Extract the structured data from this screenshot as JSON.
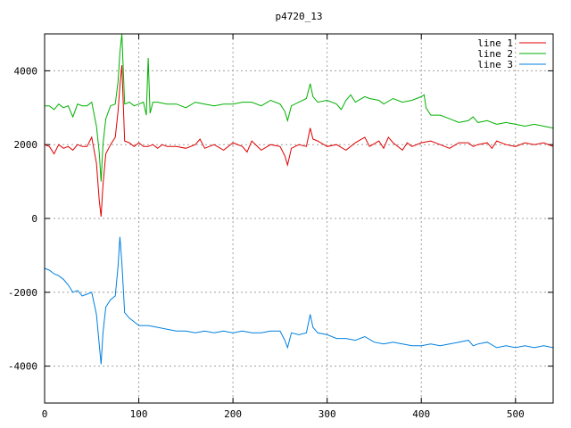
{
  "chart_data": {
    "type": "line",
    "title": "p4720_13",
    "xlabel": "",
    "ylabel": "",
    "xlim": [
      0,
      540
    ],
    "ylim": [
      -5000,
      5000
    ],
    "grid": true,
    "legend_position": "top-right",
    "x_ticks": [
      0,
      100,
      200,
      300,
      400,
      500
    ],
    "x_tick_labels": [
      "0",
      "100",
      "200",
      "300",
      "400",
      "500"
    ],
    "y_ticks": [
      -4000,
      -2000,
      0,
      2000,
      4000
    ],
    "y_tick_labels": [
      "-4000",
      "-2000",
      "0",
      "2000",
      "4000"
    ],
    "series": [
      {
        "name": "line 1",
        "color": "#e00000",
        "points": [
          [
            0,
            2000
          ],
          [
            5,
            1950
          ],
          [
            10,
            1750
          ],
          [
            15,
            2000
          ],
          [
            20,
            1900
          ],
          [
            25,
            1950
          ],
          [
            30,
            1850
          ],
          [
            35,
            2000
          ],
          [
            40,
            1950
          ],
          [
            45,
            1950
          ],
          [
            50,
            2200
          ],
          [
            55,
            1500
          ],
          [
            58,
            500
          ],
          [
            60,
            50
          ],
          [
            62,
            900
          ],
          [
            65,
            1750
          ],
          [
            70,
            2000
          ],
          [
            75,
            2200
          ],
          [
            78,
            2900
          ],
          [
            80,
            3600
          ],
          [
            82,
            4150
          ],
          [
            85,
            2100
          ],
          [
            90,
            2050
          ],
          [
            95,
            1950
          ],
          [
            100,
            2050
          ],
          [
            105,
            1950
          ],
          [
            110,
            1950
          ],
          [
            115,
            2000
          ],
          [
            120,
            1900
          ],
          [
            125,
            2000
          ],
          [
            130,
            1950
          ],
          [
            140,
            1950
          ],
          [
            150,
            1900
          ],
          [
            160,
            2000
          ],
          [
            165,
            2150
          ],
          [
            170,
            1900
          ],
          [
            180,
            2000
          ],
          [
            190,
            1850
          ],
          [
            200,
            2050
          ],
          [
            210,
            1950
          ],
          [
            215,
            1800
          ],
          [
            220,
            2100
          ],
          [
            230,
            1850
          ],
          [
            240,
            2000
          ],
          [
            250,
            1950
          ],
          [
            255,
            1700
          ],
          [
            258,
            1450
          ],
          [
            262,
            1900
          ],
          [
            270,
            2000
          ],
          [
            278,
            1950
          ],
          [
            282,
            2450
          ],
          [
            285,
            2150
          ],
          [
            290,
            2100
          ],
          [
            300,
            1950
          ],
          [
            310,
            2000
          ],
          [
            320,
            1850
          ],
          [
            330,
            2050
          ],
          [
            340,
            2200
          ],
          [
            345,
            1950
          ],
          [
            355,
            2100
          ],
          [
            360,
            1900
          ],
          [
            365,
            2200
          ],
          [
            370,
            2050
          ],
          [
            380,
            1850
          ],
          [
            385,
            2050
          ],
          [
            390,
            1950
          ],
          [
            400,
            2050
          ],
          [
            410,
            2100
          ],
          [
            420,
            2000
          ],
          [
            430,
            1900
          ],
          [
            440,
            2050
          ],
          [
            450,
            2050
          ],
          [
            455,
            1950
          ],
          [
            460,
            2000
          ],
          [
            470,
            2050
          ],
          [
            475,
            1900
          ],
          [
            480,
            2100
          ],
          [
            490,
            2000
          ],
          [
            500,
            1950
          ],
          [
            510,
            2050
          ],
          [
            520,
            2000
          ],
          [
            530,
            2050
          ],
          [
            540,
            1950
          ]
        ]
      },
      {
        "name": "line 2",
        "color": "#00b000",
        "points": [
          [
            0,
            3050
          ],
          [
            5,
            3050
          ],
          [
            10,
            2950
          ],
          [
            15,
            3100
          ],
          [
            20,
            3000
          ],
          [
            25,
            3050
          ],
          [
            30,
            2750
          ],
          [
            35,
            3100
          ],
          [
            40,
            3050
          ],
          [
            45,
            3050
          ],
          [
            50,
            3150
          ],
          [
            55,
            2500
          ],
          [
            58,
            1800
          ],
          [
            60,
            1000
          ],
          [
            62,
            2000
          ],
          [
            65,
            2700
          ],
          [
            70,
            3050
          ],
          [
            75,
            3100
          ],
          [
            78,
            3700
          ],
          [
            80,
            4500
          ],
          [
            82,
            5000
          ],
          [
            85,
            3100
          ],
          [
            90,
            3150
          ],
          [
            95,
            3050
          ],
          [
            100,
            3100
          ],
          [
            105,
            3150
          ],
          [
            108,
            2800
          ],
          [
            110,
            4350
          ],
          [
            112,
            2850
          ],
          [
            115,
            3150
          ],
          [
            120,
            3150
          ],
          [
            130,
            3100
          ],
          [
            140,
            3100
          ],
          [
            150,
            3000
          ],
          [
            160,
            3150
          ],
          [
            170,
            3100
          ],
          [
            180,
            3050
          ],
          [
            190,
            3100
          ],
          [
            200,
            3100
          ],
          [
            210,
            3150
          ],
          [
            220,
            3150
          ],
          [
            230,
            3050
          ],
          [
            240,
            3200
          ],
          [
            250,
            3100
          ],
          [
            255,
            2900
          ],
          [
            258,
            2650
          ],
          [
            262,
            3050
          ],
          [
            270,
            3150
          ],
          [
            278,
            3250
          ],
          [
            282,
            3650
          ],
          [
            285,
            3300
          ],
          [
            290,
            3150
          ],
          [
            300,
            3200
          ],
          [
            310,
            3100
          ],
          [
            315,
            2950
          ],
          [
            320,
            3200
          ],
          [
            325,
            3350
          ],
          [
            330,
            3150
          ],
          [
            340,
            3300
          ],
          [
            345,
            3250
          ],
          [
            355,
            3200
          ],
          [
            360,
            3100
          ],
          [
            370,
            3250
          ],
          [
            380,
            3150
          ],
          [
            390,
            3200
          ],
          [
            400,
            3300
          ],
          [
            403,
            3350
          ],
          [
            405,
            3000
          ],
          [
            410,
            2800
          ],
          [
            420,
            2800
          ],
          [
            430,
            2700
          ],
          [
            440,
            2600
          ],
          [
            450,
            2650
          ],
          [
            455,
            2750
          ],
          [
            460,
            2600
          ],
          [
            470,
            2650
          ],
          [
            480,
            2550
          ],
          [
            490,
            2600
          ],
          [
            500,
            2550
          ],
          [
            510,
            2500
          ],
          [
            520,
            2550
          ],
          [
            530,
            2500
          ],
          [
            540,
            2450
          ]
        ]
      },
      {
        "name": "line 3",
        "color": "#0080e0",
        "points": [
          [
            0,
            -1350
          ],
          [
            5,
            -1400
          ],
          [
            10,
            -1500
          ],
          [
            15,
            -1550
          ],
          [
            20,
            -1650
          ],
          [
            25,
            -1800
          ],
          [
            30,
            -2000
          ],
          [
            35,
            -1950
          ],
          [
            40,
            -2100
          ],
          [
            45,
            -2050
          ],
          [
            50,
            -2000
          ],
          [
            55,
            -2600
          ],
          [
            58,
            -3400
          ],
          [
            60,
            -3950
          ],
          [
            62,
            -3100
          ],
          [
            65,
            -2400
          ],
          [
            70,
            -2200
          ],
          [
            75,
            -2100
          ],
          [
            78,
            -1300
          ],
          [
            80,
            -500
          ],
          [
            82,
            -1200
          ],
          [
            85,
            -2550
          ],
          [
            90,
            -2700
          ],
          [
            95,
            -2800
          ],
          [
            100,
            -2900
          ],
          [
            110,
            -2900
          ],
          [
            120,
            -2950
          ],
          [
            130,
            -3000
          ],
          [
            140,
            -3050
          ],
          [
            150,
            -3050
          ],
          [
            160,
            -3100
          ],
          [
            170,
            -3050
          ],
          [
            180,
            -3100
          ],
          [
            190,
            -3050
          ],
          [
            200,
            -3100
          ],
          [
            210,
            -3050
          ],
          [
            220,
            -3100
          ],
          [
            230,
            -3100
          ],
          [
            240,
            -3050
          ],
          [
            250,
            -3050
          ],
          [
            255,
            -3300
          ],
          [
            258,
            -3500
          ],
          [
            262,
            -3100
          ],
          [
            270,
            -3150
          ],
          [
            278,
            -3100
          ],
          [
            282,
            -2600
          ],
          [
            285,
            -2950
          ],
          [
            290,
            -3100
          ],
          [
            300,
            -3150
          ],
          [
            310,
            -3250
          ],
          [
            320,
            -3250
          ],
          [
            330,
            -3300
          ],
          [
            340,
            -3200
          ],
          [
            350,
            -3350
          ],
          [
            360,
            -3400
          ],
          [
            370,
            -3350
          ],
          [
            380,
            -3400
          ],
          [
            390,
            -3450
          ],
          [
            400,
            -3450
          ],
          [
            410,
            -3400
          ],
          [
            420,
            -3450
          ],
          [
            430,
            -3400
          ],
          [
            440,
            -3350
          ],
          [
            450,
            -3300
          ],
          [
            455,
            -3450
          ],
          [
            460,
            -3400
          ],
          [
            470,
            -3350
          ],
          [
            480,
            -3500
          ],
          [
            490,
            -3450
          ],
          [
            500,
            -3500
          ],
          [
            510,
            -3450
          ],
          [
            520,
            -3500
          ],
          [
            530,
            -3450
          ],
          [
            540,
            -3500
          ]
        ]
      }
    ]
  }
}
